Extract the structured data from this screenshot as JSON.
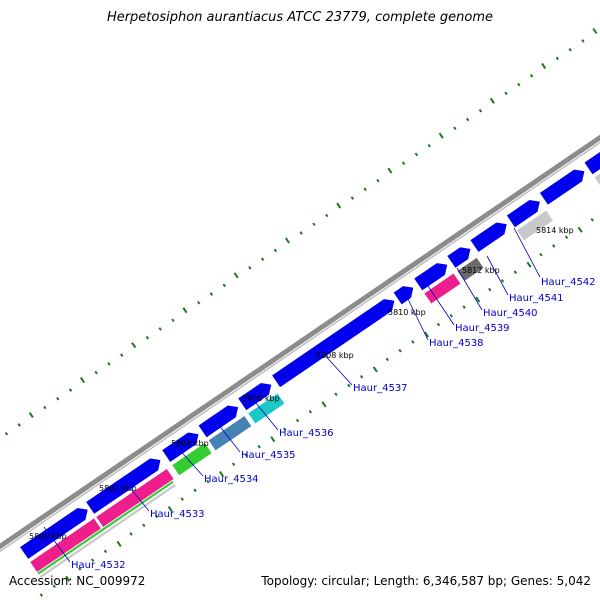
{
  "title": "Herpetosiphon aurantiacus ATCC 23779, complete genome",
  "footer": {
    "accession": "Accession: NC_009972",
    "summary": "Topology: circular; Length: 6,346,587 bp; Genes: 5,042"
  },
  "colors": {
    "forward_gene": "#0000ee",
    "backbone": "#8c8c8c",
    "tick": "#1a7a1a",
    "label": "#0000c8",
    "label_line": "#0000c8",
    "magenta": "#ee1f8c",
    "green": "#33cc33",
    "steel_blue": "#4682b4",
    "cyan": "#1ac8c8",
    "light_gray": "#c8c8c8",
    "dark_gray": "#6a6a6a"
  },
  "tick_labels": [
    "5800 kbp",
    "5802 kbp",
    "5804 kbp",
    "5806 kbp",
    "5808 kbp",
    "5810 kbp",
    "5812 kbp",
    "5814 kbp"
  ],
  "gene_labels": [
    "Haur_4532",
    "Haur_4533",
    "Haur_4534",
    "Haur_4535",
    "Haur_4536",
    "Haur_4537",
    "Haur_4538",
    "Haur_4539",
    "Haur_4540",
    "Haur_4541",
    "Haur_4542"
  ]
}
